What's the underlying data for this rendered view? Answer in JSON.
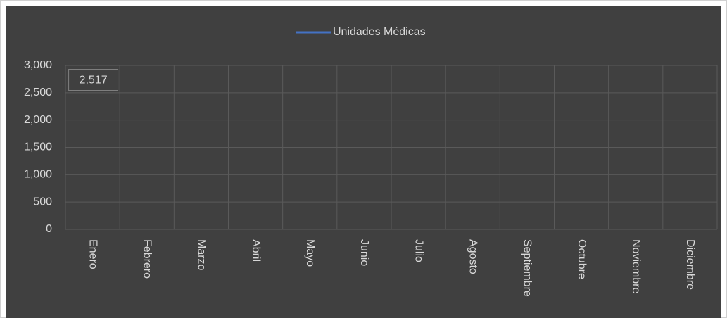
{
  "chart_data": {
    "type": "line",
    "categories": [
      "Enero",
      "Febrero",
      "Marzo",
      "Abril",
      "Mayo",
      "Junio",
      "Julio",
      "Agosto",
      "Septiembre",
      "Octubre",
      "Noviembre",
      "Diciembre"
    ],
    "series": [
      {
        "name": "Unidades Médicas",
        "color": "#4472c4",
        "values": [
          2517,
          null,
          null,
          null,
          null,
          null,
          null,
          null,
          null,
          null,
          null,
          null
        ],
        "value_labels": [
          "2,517",
          null,
          null,
          null,
          null,
          null,
          null,
          null,
          null,
          null,
          null,
          null
        ]
      }
    ],
    "ylim": [
      0,
      3000
    ],
    "yticks": [
      0,
      500,
      {
        "value": 1000,
        "label": "1,000"
      },
      {
        "value": 1500,
        "label": "1,500"
      },
      {
        "value": 2000,
        "label": "2,000"
      },
      {
        "value": 2500,
        "label": "2,500"
      },
      {
        "value": 3000,
        "label": "3,000"
      }
    ],
    "grid": true,
    "legend": "top"
  }
}
